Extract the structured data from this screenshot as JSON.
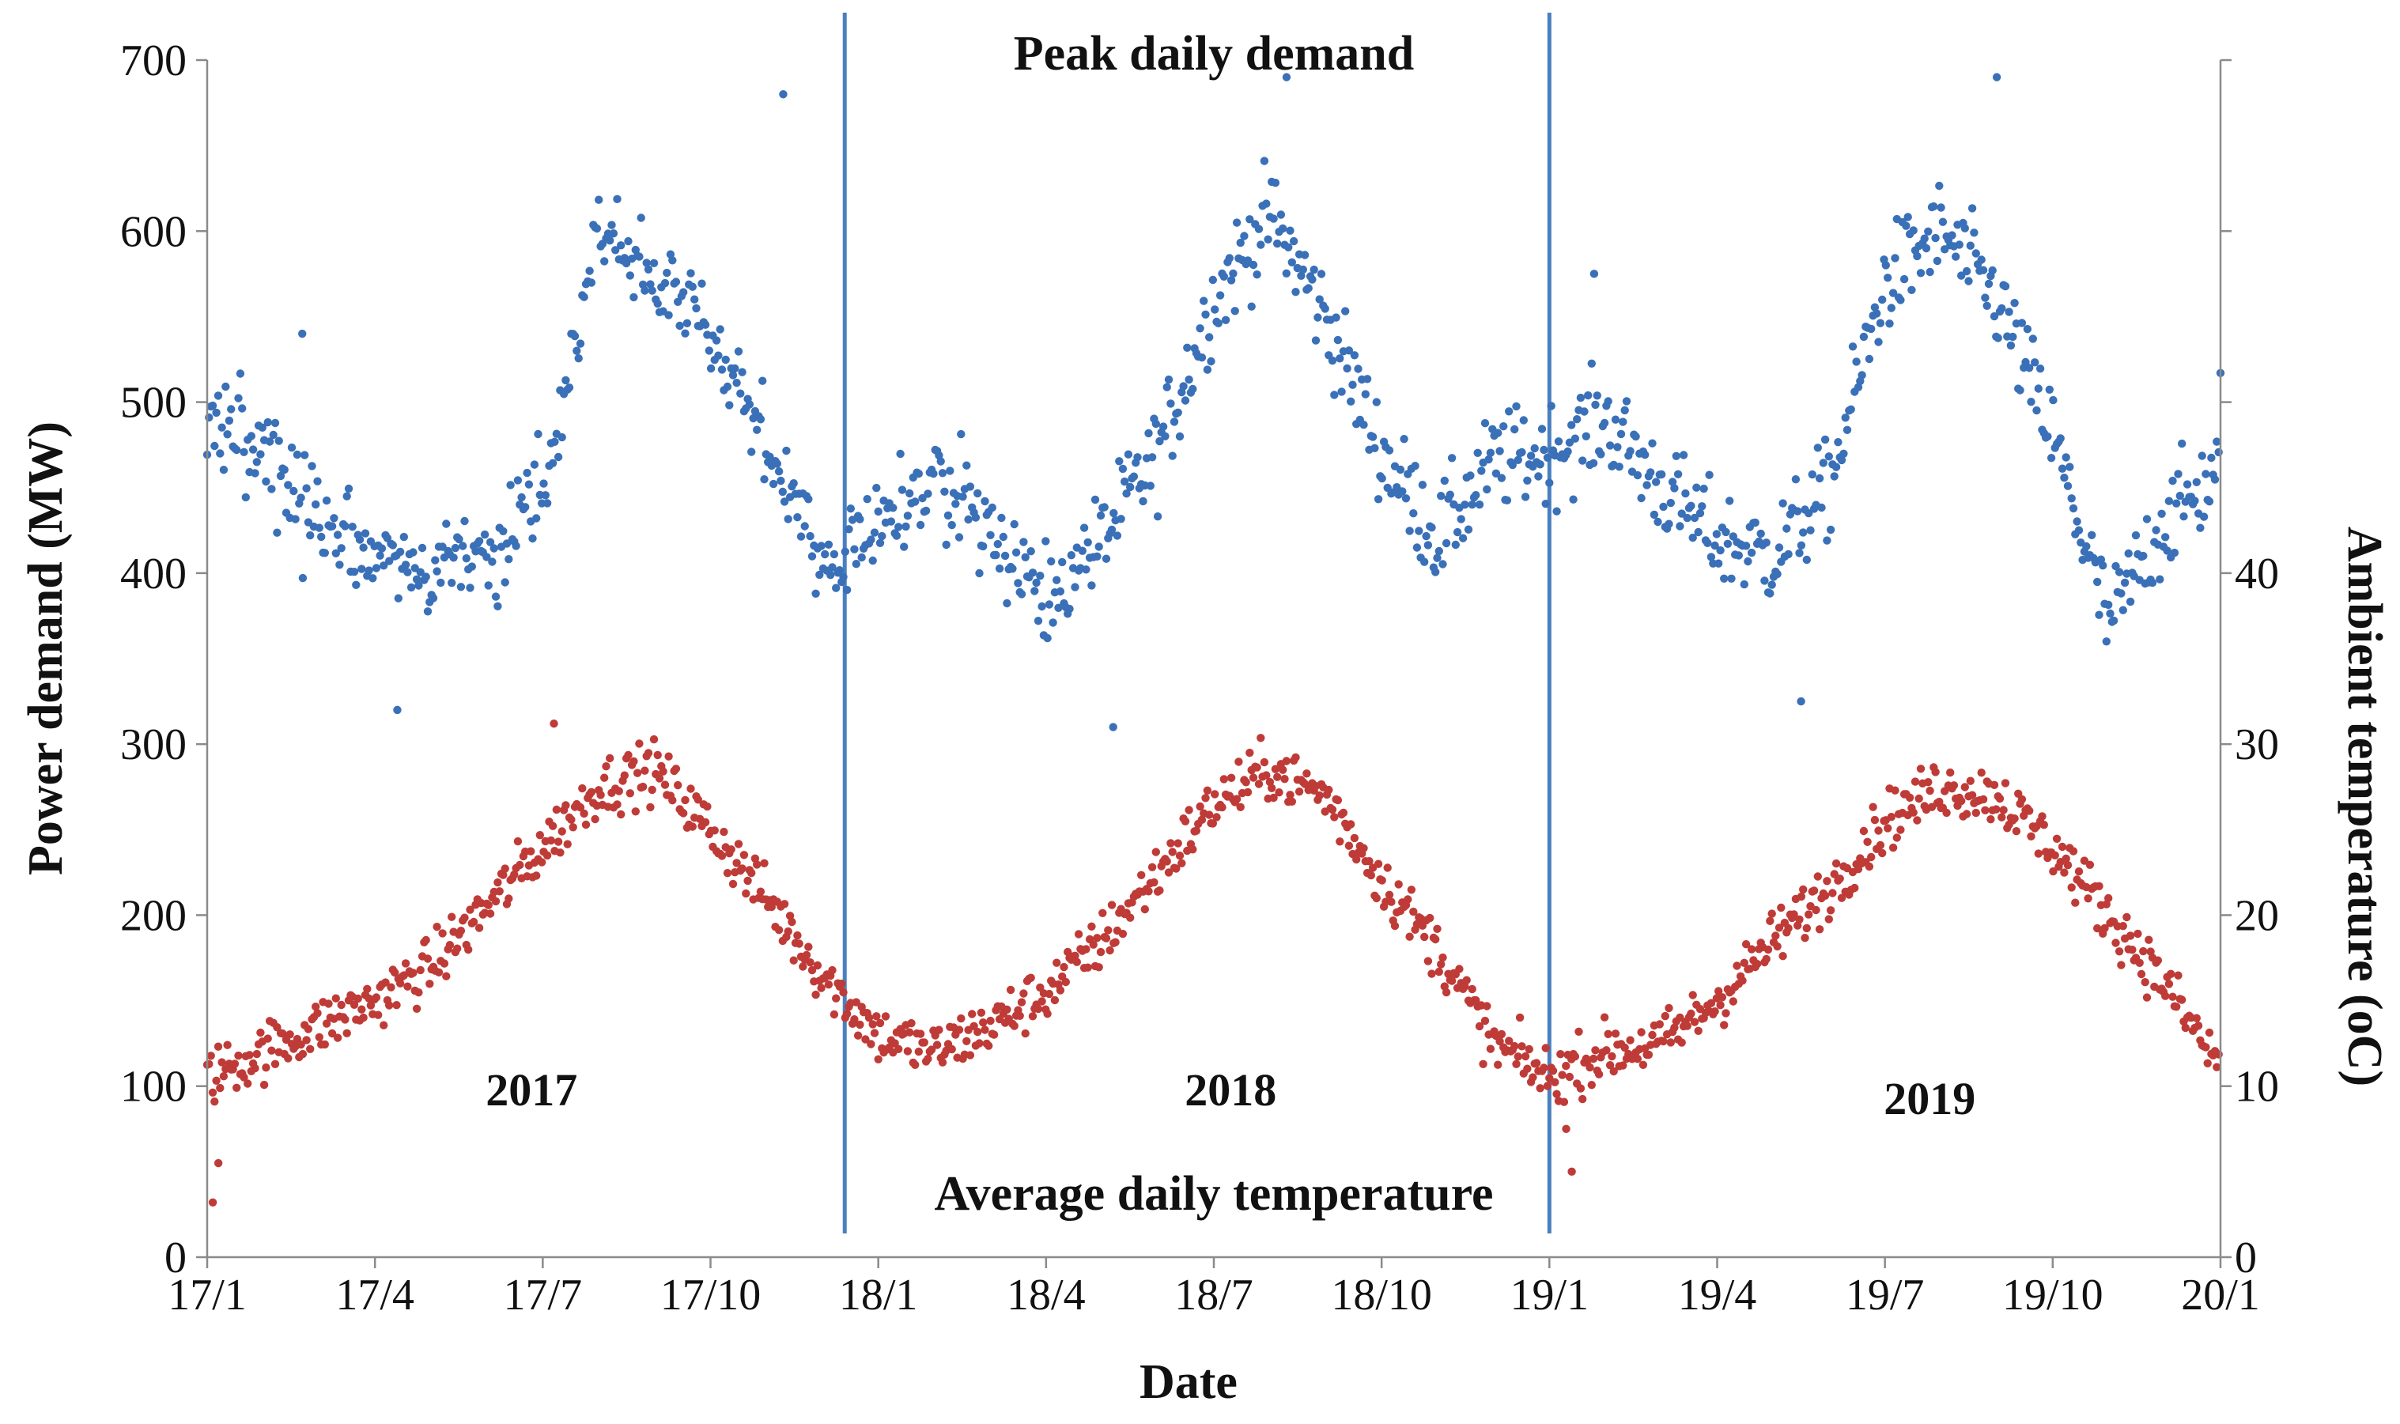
{
  "chart_data": {
    "type": "scatter",
    "title": "",
    "xlabel": "Date",
    "ylabel": "Power demand (MW)",
    "y2label": "Ambient temperature (oC)",
    "x_range_months": [
      0,
      36
    ],
    "ylim": [
      0,
      700
    ],
    "y2lim": [
      0,
      70
    ],
    "x_ticks": [
      {
        "label": "17/1",
        "month": 0
      },
      {
        "label": "17/4",
        "month": 3
      },
      {
        "label": "17/7",
        "month": 6
      },
      {
        "label": "17/10",
        "month": 9
      },
      {
        "label": "18/1",
        "month": 12
      },
      {
        "label": "18/4",
        "month": 15
      },
      {
        "label": "18/7",
        "month": 18
      },
      {
        "label": "18/10",
        "month": 21
      },
      {
        "label": "19/1",
        "month": 24
      },
      {
        "label": "19/4",
        "month": 27
      },
      {
        "label": "19/7",
        "month": 30
      },
      {
        "label": "19/10",
        "month": 33
      },
      {
        "label": "20/1",
        "month": 36
      }
    ],
    "y_ticks": [
      {
        "label": "0",
        "value": 0
      },
      {
        "label": "100",
        "value": 100
      },
      {
        "label": "200",
        "value": 200
      },
      {
        "label": "300",
        "value": 300
      },
      {
        "label": "400",
        "value": 400
      },
      {
        "label": "500",
        "value": 500
      },
      {
        "label": "600",
        "value": 600
      },
      {
        "label": "700",
        "value": 700
      }
    ],
    "y2_ticks": [
      {
        "label": "0",
        "value": 0
      },
      {
        "label": "10",
        "value": 10
      },
      {
        "label": "20",
        "value": 20
      },
      {
        "label": "30",
        "value": 30
      },
      {
        "label": "40",
        "value": 40
      },
      {
        "label": "",
        "value": 50
      },
      {
        "label": "",
        "value": 60
      },
      {
        "label": "",
        "value": 70
      }
    ],
    "dividers_month": [
      11.4,
      24.0
    ],
    "annotations": {
      "peak": "Peak daily demand",
      "avg": "Average daily temperature"
    },
    "year_labels": [
      {
        "label": "2017",
        "month": 5.8,
        "value": 97
      },
      {
        "label": "2018",
        "month": 18.3,
        "value": 97
      },
      {
        "label": "2019",
        "month": 30.8,
        "value": 92
      }
    ],
    "series": [
      {
        "name": "Peak daily demand",
        "axis": "left",
        "color": "#3a70b8",
        "curve_month": [
          0,
          1,
          2,
          3,
          4,
          5,
          6,
          7,
          8,
          9,
          10,
          11,
          12,
          13,
          14,
          15,
          16,
          17,
          18,
          19,
          20,
          21,
          22,
          23,
          24,
          25,
          26,
          27,
          28,
          29,
          30,
          31,
          32,
          33,
          34,
          35,
          36
        ],
        "curve_mw": [
          495,
          470,
          430,
          405,
          395,
          415,
          450,
          600,
          575,
          540,
          475,
          400,
          430,
          455,
          430,
          380,
          420,
          470,
          560,
          610,
          550,
          470,
          420,
          465,
          470,
          490,
          450,
          420,
          410,
          450,
          570,
          600,
          560,
          480,
          370,
          430,
          460
        ],
        "spread_mw": 38,
        "outliers": [
          {
            "month": 10.3,
            "value": 680
          },
          {
            "month": 19.3,
            "value": 690
          },
          {
            "month": 24.8,
            "value": 575
          },
          {
            "month": 32.0,
            "value": 690
          },
          {
            "month": 36.0,
            "value": 517
          },
          {
            "month": 3.4,
            "value": 320
          },
          {
            "month": 16.2,
            "value": 310
          },
          {
            "month": 28.5,
            "value": 325
          },
          {
            "month": 1.7,
            "value": 540
          }
        ]
      },
      {
        "name": "Average daily temperature",
        "axis": "right",
        "color": "#bf3b37",
        "curve_month": [
          0,
          1,
          2,
          3,
          4,
          5,
          6,
          7,
          8,
          9,
          10,
          11,
          12,
          13,
          14,
          15,
          16,
          17,
          18,
          19,
          20,
          21,
          22,
          23,
          24,
          25,
          26,
          27,
          28,
          29,
          30,
          31,
          32,
          33,
          34,
          35,
          36
        ],
        "curve_c": [
          10.5,
          12,
          13.5,
          15,
          17,
          20.5,
          24,
          27.5,
          28.5,
          25,
          21,
          16.5,
          13,
          12,
          13.5,
          15.5,
          18.5,
          22.5,
          26.5,
          28.5,
          27,
          22,
          18,
          12.5,
          10.5,
          12,
          12.5,
          15,
          18.5,
          21.5,
          25.5,
          27.5,
          27,
          24,
          20,
          16,
          11
        ],
        "spread_c": 2.2,
        "outliers": [
          {
            "month": 0.1,
            "value": 3.2
          },
          {
            "month": 0.2,
            "value": 5.5
          },
          {
            "month": 24.3,
            "value": 7.5
          },
          {
            "month": 24.4,
            "value": 5.0
          },
          {
            "month": 6.2,
            "value": 31.2
          }
        ]
      }
    ]
  }
}
